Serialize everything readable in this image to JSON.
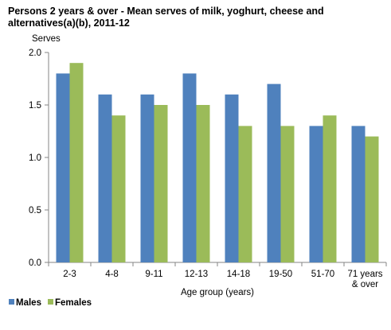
{
  "chart_data": {
    "type": "bar",
    "title": "Persons 2 years & over - Mean serves of milk, yoghurt, cheese and alternatives(a)(b), 2011-12",
    "ylabel": "Serves",
    "xlabel": "Age group (years)",
    "ylim": [
      0,
      2.0
    ],
    "yticks": [
      "0.0",
      "0.5",
      "1.0",
      "1.5",
      "2.0"
    ],
    "categories": [
      "2-3",
      "4-8",
      "9-11",
      "12-13",
      "14-18",
      "19-50",
      "51-70",
      [
        "71 years",
        "& over"
      ]
    ],
    "series": [
      {
        "name": "Males",
        "color": "#4f81bd",
        "values": [
          1.8,
          1.6,
          1.6,
          1.8,
          1.6,
          1.7,
          1.3,
          1.3
        ]
      },
      {
        "name": "Females",
        "color": "#9bbb59",
        "values": [
          1.9,
          1.4,
          1.5,
          1.5,
          1.3,
          1.3,
          1.4,
          1.2
        ]
      }
    ],
    "legend_position": "bottom-left",
    "grid": false
  }
}
